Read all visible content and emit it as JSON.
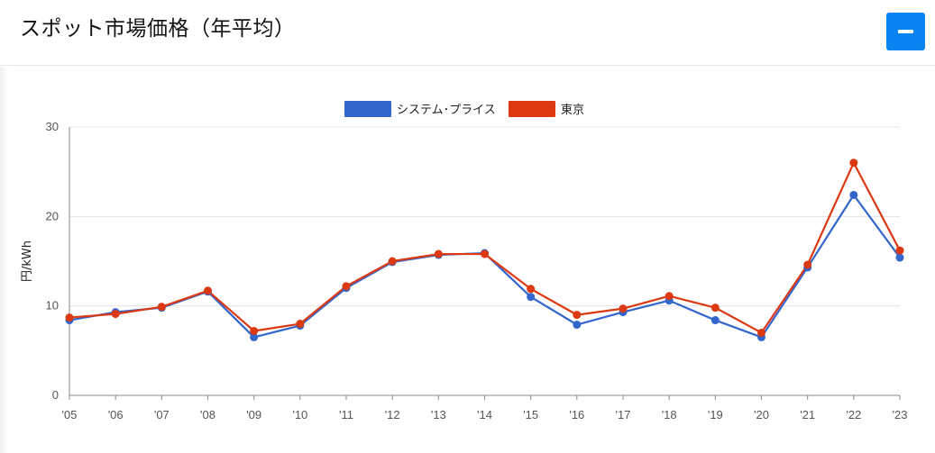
{
  "header": {
    "title": "スポット市場価格（年平均）",
    "collapse_icon": "minus-icon",
    "accent": "#0a84f0"
  },
  "chart_data": {
    "type": "line",
    "ylabel": "円/kWh",
    "ylim": [
      0,
      30
    ],
    "yticks": [
      0,
      10,
      20,
      30
    ],
    "grid": true,
    "legend_position": "top-center",
    "categories": [
      "'05",
      "'06",
      "'07",
      "'08",
      "'09",
      "'10",
      "'11",
      "'12",
      "'13",
      "'14",
      "'15",
      "'16",
      "'17",
      "'18",
      "'19",
      "'20",
      "'21",
      "'22",
      "'23"
    ],
    "series": [
      {
        "name": "システム･プライス",
        "color": "#3366cc",
        "values": [
          8.4,
          9.3,
          9.8,
          11.6,
          6.5,
          7.8,
          12.0,
          14.9,
          15.7,
          15.9,
          11.0,
          7.9,
          9.3,
          10.6,
          8.4,
          6.5,
          14.3,
          22.4,
          15.4
        ]
      },
      {
        "name": "東京",
        "color": "#dc3912",
        "values": [
          8.7,
          9.1,
          9.9,
          11.7,
          7.2,
          8.0,
          12.2,
          15.0,
          15.8,
          15.8,
          11.9,
          9.0,
          9.7,
          11.1,
          9.8,
          7.0,
          14.6,
          26.0,
          16.2
        ]
      }
    ]
  }
}
